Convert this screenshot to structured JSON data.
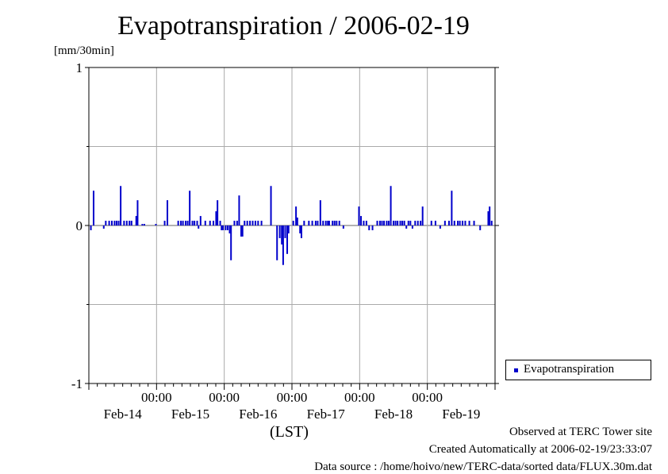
{
  "chart_data": {
    "type": "bar",
    "title": "Evapotranspiration / 2006-02-19",
    "ylabel": "[mm/30min]",
    "xlabel": "(LST)",
    "ylim": [
      -1,
      1
    ],
    "y_ticks": [
      "1",
      "0",
      "-1"
    ],
    "x_time_labels": [
      "00:00",
      "00:00",
      "00:00",
      "00:00",
      "00:00"
    ],
    "x_date_labels": [
      "Feb-14",
      "Feb-15",
      "Feb-16",
      "Feb-17",
      "Feb-18",
      "Feb-19"
    ],
    "grid": true,
    "legend_position": "right",
    "series": [
      {
        "name": "Evapotranspiration",
        "color": "#0000cc",
        "x_range_days": [
          0,
          6
        ],
        "points": [
          [
            0.03,
            -0.03
          ],
          [
            0.07,
            0.22
          ],
          [
            0.22,
            -0.02
          ],
          [
            0.25,
            0.03
          ],
          [
            0.3,
            0.03
          ],
          [
            0.34,
            0.03
          ],
          [
            0.38,
            0.03
          ],
          [
            0.41,
            0.03
          ],
          [
            0.44,
            0.03
          ],
          [
            0.47,
            0.25
          ],
          [
            0.52,
            0.03
          ],
          [
            0.56,
            0.03
          ],
          [
            0.6,
            0.03
          ],
          [
            0.63,
            0.03
          ],
          [
            0.7,
            0.06
          ],
          [
            0.72,
            0.16
          ],
          [
            0.79,
            0.01
          ],
          [
            0.82,
            0.01
          ],
          [
            0.99,
            0.01
          ],
          [
            1.12,
            0.03
          ],
          [
            1.16,
            0.16
          ],
          [
            1.32,
            0.03
          ],
          [
            1.36,
            0.03
          ],
          [
            1.39,
            0.03
          ],
          [
            1.43,
            0.03
          ],
          [
            1.46,
            0.03
          ],
          [
            1.49,
            0.22
          ],
          [
            1.53,
            0.03
          ],
          [
            1.56,
            0.03
          ],
          [
            1.6,
            0.03
          ],
          [
            1.62,
            -0.02
          ],
          [
            1.65,
            0.06
          ],
          [
            1.72,
            0.03
          ],
          [
            1.79,
            0.03
          ],
          [
            1.84,
            0.03
          ],
          [
            1.88,
            0.09
          ],
          [
            1.9,
            0.16
          ],
          [
            1.94,
            0.03
          ],
          [
            1.96,
            -0.03
          ],
          [
            1.98,
            -0.03
          ],
          [
            2.02,
            -0.03
          ],
          [
            2.05,
            -0.03
          ],
          [
            2.08,
            -0.05
          ],
          [
            2.1,
            -0.22
          ],
          [
            2.15,
            0.03
          ],
          [
            2.19,
            0.03
          ],
          [
            2.22,
            0.19
          ],
          [
            2.25,
            -0.07
          ],
          [
            2.27,
            -0.07
          ],
          [
            2.3,
            0.03
          ],
          [
            2.34,
            0.03
          ],
          [
            2.38,
            0.03
          ],
          [
            2.42,
            0.03
          ],
          [
            2.46,
            0.03
          ],
          [
            2.5,
            0.03
          ],
          [
            2.55,
            0.03
          ],
          [
            2.69,
            0.25
          ],
          [
            2.78,
            -0.22
          ],
          [
            2.82,
            -0.08
          ],
          [
            2.85,
            -0.12
          ],
          [
            2.87,
            -0.25
          ],
          [
            2.9,
            -0.08
          ],
          [
            2.93,
            -0.18
          ],
          [
            2.95,
            -0.05
          ],
          [
            3.02,
            0.03
          ],
          [
            3.06,
            0.12
          ],
          [
            3.08,
            0.05
          ],
          [
            3.12,
            -0.05
          ],
          [
            3.14,
            -0.08
          ],
          [
            3.18,
            0.03
          ],
          [
            3.25,
            0.03
          ],
          [
            3.3,
            0.03
          ],
          [
            3.35,
            0.03
          ],
          [
            3.38,
            0.03
          ],
          [
            3.42,
            0.16
          ],
          [
            3.46,
            0.03
          ],
          [
            3.5,
            0.03
          ],
          [
            3.53,
            0.03
          ],
          [
            3.55,
            0.03
          ],
          [
            3.6,
            0.03
          ],
          [
            3.63,
            0.03
          ],
          [
            3.66,
            0.03
          ],
          [
            3.7,
            0.03
          ],
          [
            3.76,
            -0.02
          ],
          [
            3.99,
            0.12
          ],
          [
            4.02,
            0.06
          ],
          [
            4.06,
            0.03
          ],
          [
            4.1,
            0.03
          ],
          [
            4.14,
            -0.03
          ],
          [
            4.19,
            -0.03
          ],
          [
            4.26,
            0.03
          ],
          [
            4.3,
            0.03
          ],
          [
            4.33,
            0.03
          ],
          [
            4.36,
            0.03
          ],
          [
            4.4,
            0.03
          ],
          [
            4.43,
            0.03
          ],
          [
            4.46,
            0.25
          ],
          [
            4.5,
            0.03
          ],
          [
            4.53,
            0.03
          ],
          [
            4.56,
            0.03
          ],
          [
            4.6,
            0.03
          ],
          [
            4.63,
            0.03
          ],
          [
            4.66,
            0.03
          ],
          [
            4.69,
            -0.02
          ],
          [
            4.72,
            0.03
          ],
          [
            4.75,
            0.03
          ],
          [
            4.78,
            -0.02
          ],
          [
            4.82,
            0.03
          ],
          [
            4.86,
            0.03
          ],
          [
            4.9,
            0.03
          ],
          [
            4.93,
            0.12
          ],
          [
            5.06,
            0.03
          ],
          [
            5.12,
            0.03
          ],
          [
            5.19,
            -0.02
          ],
          [
            5.26,
            0.03
          ],
          [
            5.32,
            0.03
          ],
          [
            5.36,
            0.22
          ],
          [
            5.4,
            0.03
          ],
          [
            5.45,
            0.03
          ],
          [
            5.48,
            0.03
          ],
          [
            5.52,
            0.03
          ],
          [
            5.56,
            0.03
          ],
          [
            5.62,
            0.03
          ],
          [
            5.69,
            0.03
          ],
          [
            5.78,
            -0.03
          ],
          [
            5.9,
            0.09
          ],
          [
            5.92,
            0.12
          ],
          [
            5.95,
            0.03
          ]
        ]
      }
    ]
  },
  "footer": {
    "observed": "Observed at TERC Tower site",
    "created": "Created Automatically at 2006-02-19/23:33:07",
    "source": "Data source : /home/hoivo/new/TERC-data/sorted  data/FLUX.30m.dat"
  }
}
